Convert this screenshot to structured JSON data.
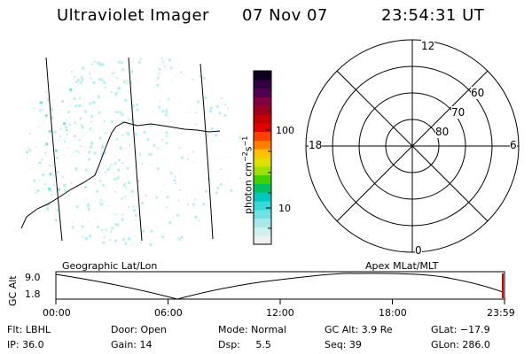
{
  "header": {
    "instrument": "Ultraviolet Imager",
    "date": "07 Nov 07",
    "time": "23:54:31 UT"
  },
  "colorbar": {
    "title": "photon cm",
    "title_sup1": "−2",
    "title_mid": "s",
    "title_sup2": "−1",
    "ticks": [
      "100",
      "10"
    ],
    "colors": [
      "#f0f0f0",
      "#d0f0f0",
      "#a8e8e8",
      "#70e0e0",
      "#38d8d8",
      "#00c8c0",
      "#00c060",
      "#40d000",
      "#a0e000",
      "#e0e000",
      "#ffc000",
      "#ff8000",
      "#ff4000",
      "#e00000",
      "#c00000",
      "#a00020",
      "#800040",
      "#500050",
      "#300040",
      "#100020"
    ]
  },
  "polar": {
    "mlt_labels": {
      "top": "12",
      "left": "18",
      "right": "6",
      "bottom": "0"
    },
    "lat_labels": [
      "60",
      "70",
      "80"
    ]
  },
  "altitude": {
    "ylabel": "GC Alt",
    "ymax_label": "9.0",
    "ymin_label": "1.8",
    "left_title": "Geographic Lat/Lon",
    "right_title": "Apex MLat/MLT",
    "time_ticks": [
      "00:00",
      "06:00",
      "12:00",
      "18:00",
      "23:59"
    ]
  },
  "status": {
    "flt": "Flt: LBHL",
    "ip": "IP: 36.0",
    "door": "Door: Open",
    "gain": "Gain: 14",
    "mode": "Mode: Normal",
    "dsp": "Dsp:     5.5",
    "gcalt": "GC Alt: 3.9 Re",
    "seq": "Seq: 39",
    "glat": "GLat: −17.9",
    "glon": "GLon: 286.0"
  },
  "colors": {
    "emission_cyan": "#7fe0e0",
    "emission_light": "#bfeeee",
    "highlight_red": "#cc0000"
  }
}
